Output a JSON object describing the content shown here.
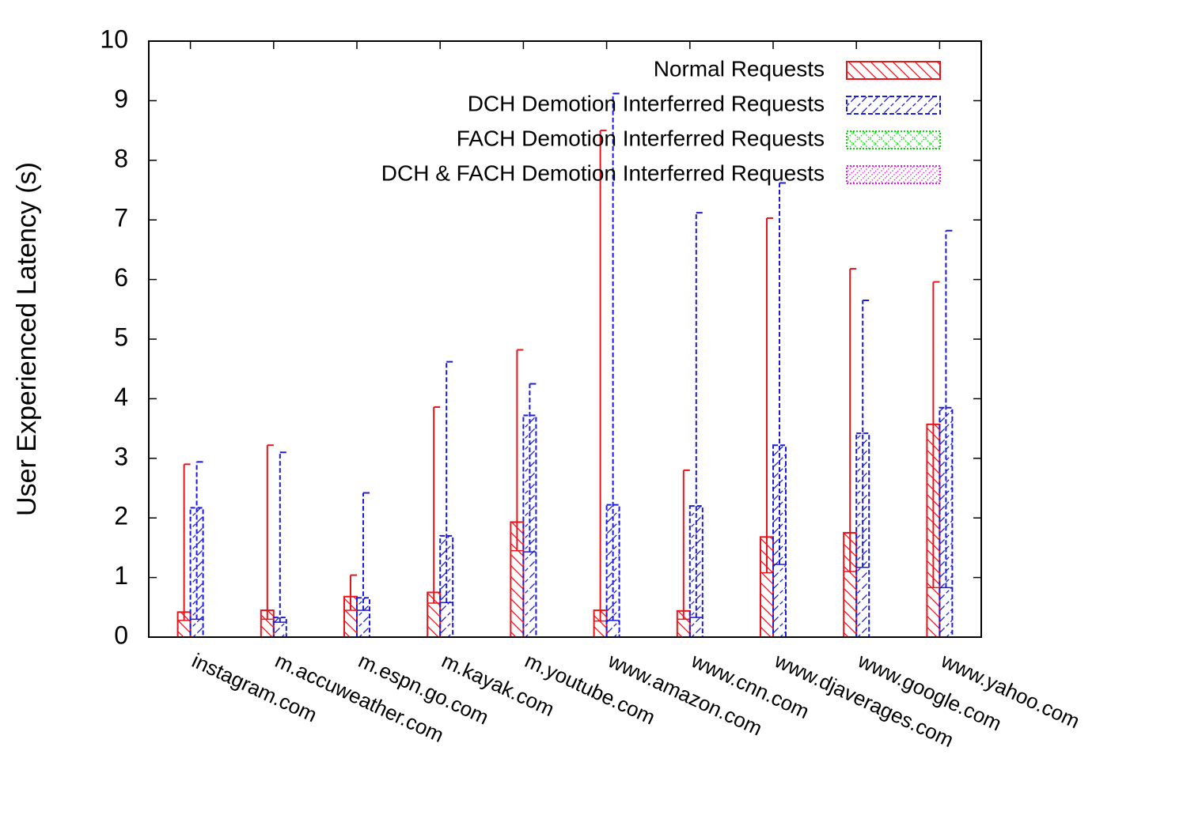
{
  "chart_data": {
    "type": "bar",
    "ylabel": "User Experienced Latency (s)",
    "categories": [
      "instagram.com",
      "m.accuweather.com",
      "m.espn.go.com",
      "m.kayak.com",
      "m.youtube.com",
      "www.amazon.com",
      "www.cnn.com",
      "www.djaverages.com",
      "www.google.com",
      "www.yahoo.com"
    ],
    "ylim": [
      0,
      10
    ],
    "yticks": [
      0,
      1,
      2,
      3,
      4,
      5,
      6,
      7,
      8,
      9,
      10
    ],
    "legend": "top-right",
    "series": [
      {
        "name": "Normal Requests",
        "color": "#e8141c",
        "pattern": "hatch-back",
        "values": [
          0.42,
          0.45,
          0.68,
          0.75,
          1.93,
          0.45,
          0.44,
          1.68,
          1.75,
          3.57
        ],
        "low": [
          0.28,
          0.3,
          0.45,
          0.57,
          1.45,
          0.27,
          0.3,
          1.08,
          1.1,
          0.83
        ],
        "high": [
          2.9,
          3.22,
          1.04,
          3.86,
          4.82,
          8.5,
          2.8,
          7.03,
          6.18,
          5.96
        ]
      },
      {
        "name": "DCH Demotion Interferred Requests",
        "color": "#1a1ae0",
        "pattern": "hatch-forward-dashed",
        "values": [
          2.17,
          0.33,
          0.66,
          1.7,
          3.72,
          2.22,
          2.2,
          3.22,
          3.42,
          3.85
        ],
        "low": [
          0.3,
          0.25,
          0.45,
          0.58,
          1.43,
          0.28,
          0.33,
          1.22,
          1.17,
          0.83
        ],
        "high": [
          2.94,
          3.1,
          2.42,
          4.62,
          4.25,
          9.12,
          7.12,
          7.62,
          5.65,
          6.82
        ]
      },
      {
        "name": "FACH Demotion Interferred Requests",
        "color": "#10d010",
        "pattern": "dots",
        "values": [
          null,
          null,
          null,
          null,
          null,
          null,
          null,
          null,
          null,
          null
        ]
      },
      {
        "name": "DCH & FACH Demotion Interferred Requests",
        "color": "#e020e0",
        "pattern": "hatch-forward-dotted",
        "values": [
          null,
          null,
          null,
          null,
          null,
          null,
          null,
          null,
          null,
          null
        ]
      }
    ]
  }
}
